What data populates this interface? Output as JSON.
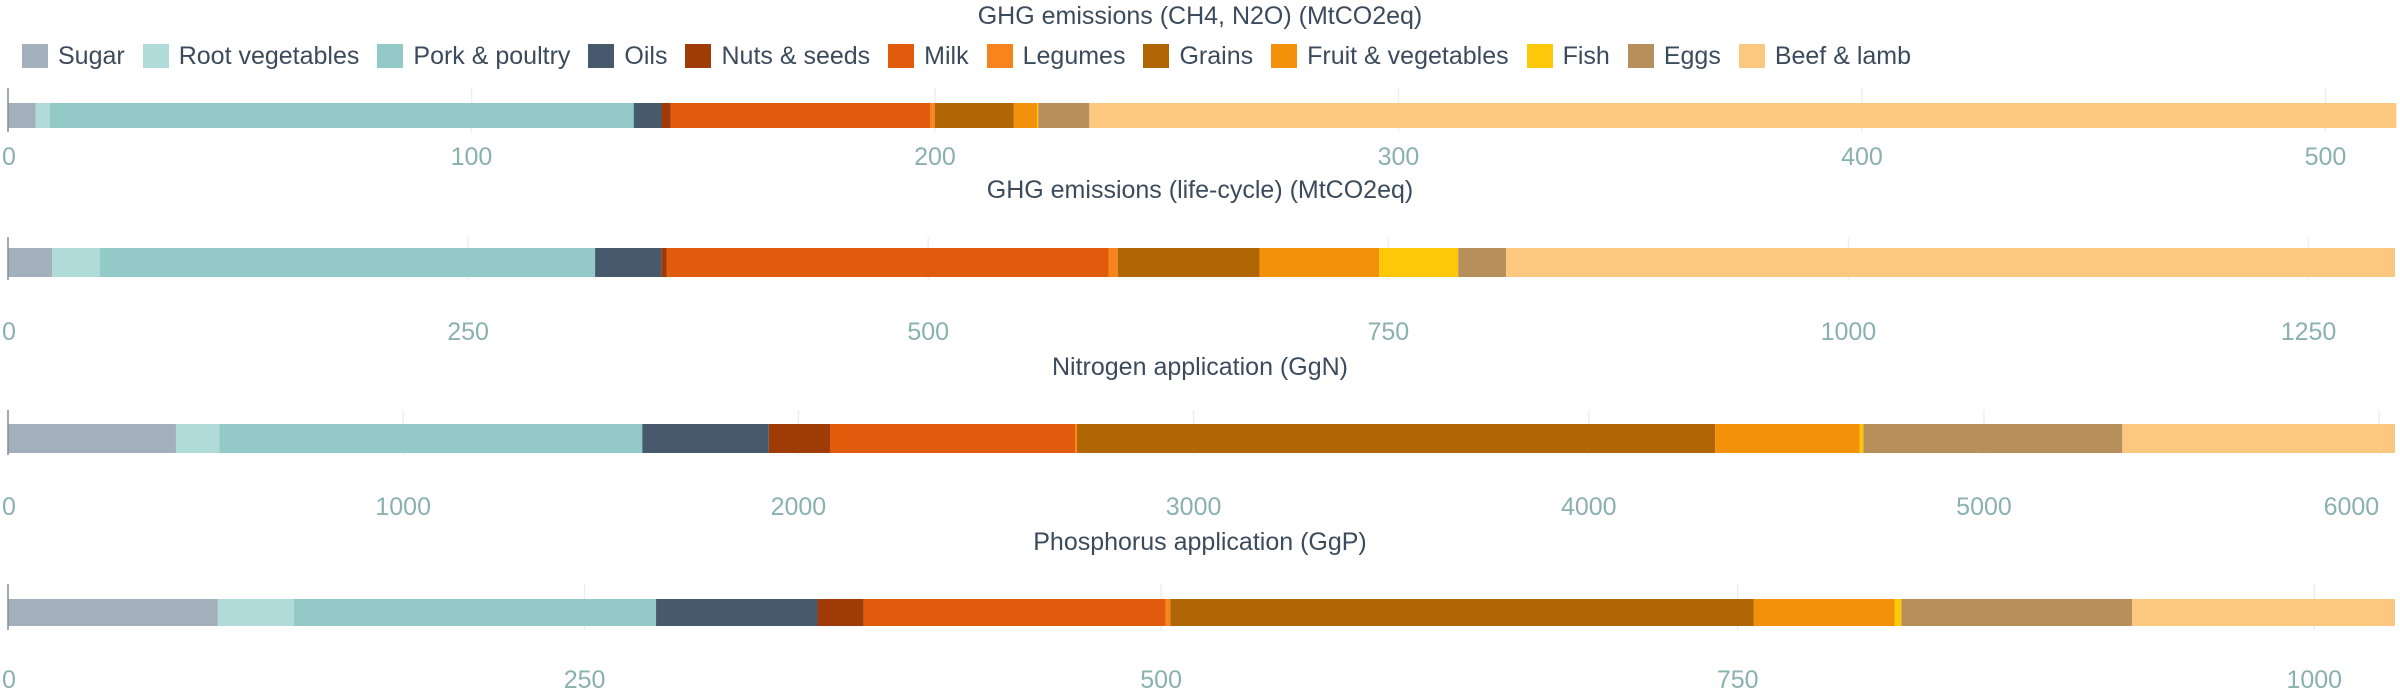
{
  "legend": [
    {
      "name": "Sugar",
      "color": "#a3afbb"
    },
    {
      "name": "Root vegetables",
      "color": "#b0dbd8"
    },
    {
      "name": "Pork & poultry",
      "color": "#93c9c7"
    },
    {
      "name": "Oils",
      "color": "#46596d"
    },
    {
      "name": "Nuts & seeds",
      "color": "#9e3b06"
    },
    {
      "name": "Milk",
      "color": "#e05c0c"
    },
    {
      "name": "Legumes",
      "color": "#f7841c"
    },
    {
      "name": "Grains",
      "color": "#b16605"
    },
    {
      "name": "Fruit & vegetables",
      "color": "#f3910b"
    },
    {
      "name": "Fish",
      "color": "#fdc80a"
    },
    {
      "name": "Eggs",
      "color": "#b68f5b"
    },
    {
      "name": "Beef & lamb",
      "color": "#fcc87f"
    }
  ],
  "chart_data": [
    {
      "type": "bar",
      "orientation": "horizontal-stacked",
      "title": "GHG emissions (CH4, N2O) (MtCO2eq)",
      "xlim": [
        0,
        515
      ],
      "ticks": [
        0,
        100,
        200,
        300,
        400,
        500
      ],
      "grid": true,
      "values": [
        6,
        3,
        126,
        6,
        2,
        56,
        1,
        17,
        5,
        0.3,
        11,
        282
      ]
    },
    {
      "type": "bar",
      "orientation": "horizontal-stacked",
      "title": "GHG emissions (life-cycle) (MtCO2eq)",
      "xlim": [
        0,
        1297
      ],
      "ticks": [
        0,
        250,
        500,
        750,
        1000,
        1250
      ],
      "grid": true,
      "values": [
        24,
        26,
        269,
        36,
        3,
        240,
        5,
        77,
        65,
        43,
        26,
        483
      ]
    },
    {
      "type": "bar",
      "orientation": "horizontal-stacked",
      "title": "Nitrogen application (GgN)",
      "xlim": [
        0,
        6040
      ],
      "ticks": [
        0,
        1000,
        2000,
        3000,
        4000,
        5000,
        6000
      ],
      "grid": true,
      "values": [
        425,
        110,
        1070,
        320,
        155,
        620,
        5,
        1615,
        365,
        10,
        655,
        690
      ]
    },
    {
      "type": "bar",
      "orientation": "horizontal-stacked",
      "title": "Phosphorus application (GgP)",
      "xlim": [
        0,
        1035
      ],
      "ticks": [
        0,
        250,
        500,
        750,
        1000
      ],
      "grid": true,
      "values": [
        91,
        33,
        157,
        70,
        20,
        131,
        2,
        253,
        61,
        3,
        100,
        114
      ]
    }
  ]
}
